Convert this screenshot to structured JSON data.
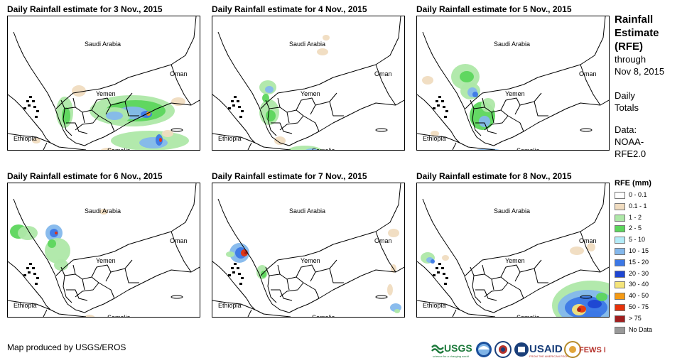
{
  "panels": [
    {
      "title": "Daily Rainfall estimate for 3 Nov., 2015"
    },
    {
      "title": "Daily Rainfall estimate for 4 Nov., 2015"
    },
    {
      "title": "Daily Rainfall estimate for 5 Nov., 2015"
    },
    {
      "title": "Daily Rainfall estimate for 6 Nov., 2015"
    },
    {
      "title": "Daily Rainfall estimate for 7 Nov., 2015"
    },
    {
      "title": "Daily Rainfall estimate for 8 Nov., 2015"
    }
  ],
  "map_labels": {
    "saudi": "Saudi Arabia",
    "oman": "Oman",
    "yemen": "Yemen",
    "ethiopia": "Ethiopia",
    "somalia": "Somalia"
  },
  "sidebar": {
    "title_line1": "Rainfall",
    "title_line2": "Estimate",
    "title_line3": "(RFE)",
    "through": "through",
    "date": "Nov 8, 2015",
    "daily1": "Daily",
    "daily2": "Totals",
    "data1": "Data:",
    "data2": "NOAA-",
    "data3": "RFE2.0"
  },
  "legend": {
    "title": "RFE (mm)",
    "items": [
      {
        "label": "0 - 0.1",
        "color": "#ffffff"
      },
      {
        "label": "0.1 - 1",
        "color": "#f0dcc0"
      },
      {
        "label": "1 - 2",
        "color": "#aee8a8"
      },
      {
        "label": "2 - 5",
        "color": "#5cd65c"
      },
      {
        "label": "5 - 10",
        "color": "#b4ecf8"
      },
      {
        "label": "10 - 15",
        "color": "#84b8ec"
      },
      {
        "label": "15 - 20",
        "color": "#3c78e6"
      },
      {
        "label": "20 - 30",
        "color": "#1e46d2"
      },
      {
        "label": "30 - 40",
        "color": "#f4e47a"
      },
      {
        "label": "40 - 50",
        "color": "#f59a14"
      },
      {
        "label": "50 - 75",
        "color": "#e6320a"
      },
      {
        "label": "> 75",
        "color": "#a01e1e"
      },
      {
        "label": "No Data",
        "color": "#999999"
      }
    ]
  },
  "footer": {
    "credit": "Map produced by USGS/EROS",
    "logo_usgs": "USGS",
    "logo_usgs_tag": "science for a changing world",
    "logo_usaid": "USAID",
    "logo_usaid_tag": "FROM THE AMERICAN PEOPLE",
    "logo_fews": "FEWS NET"
  }
}
